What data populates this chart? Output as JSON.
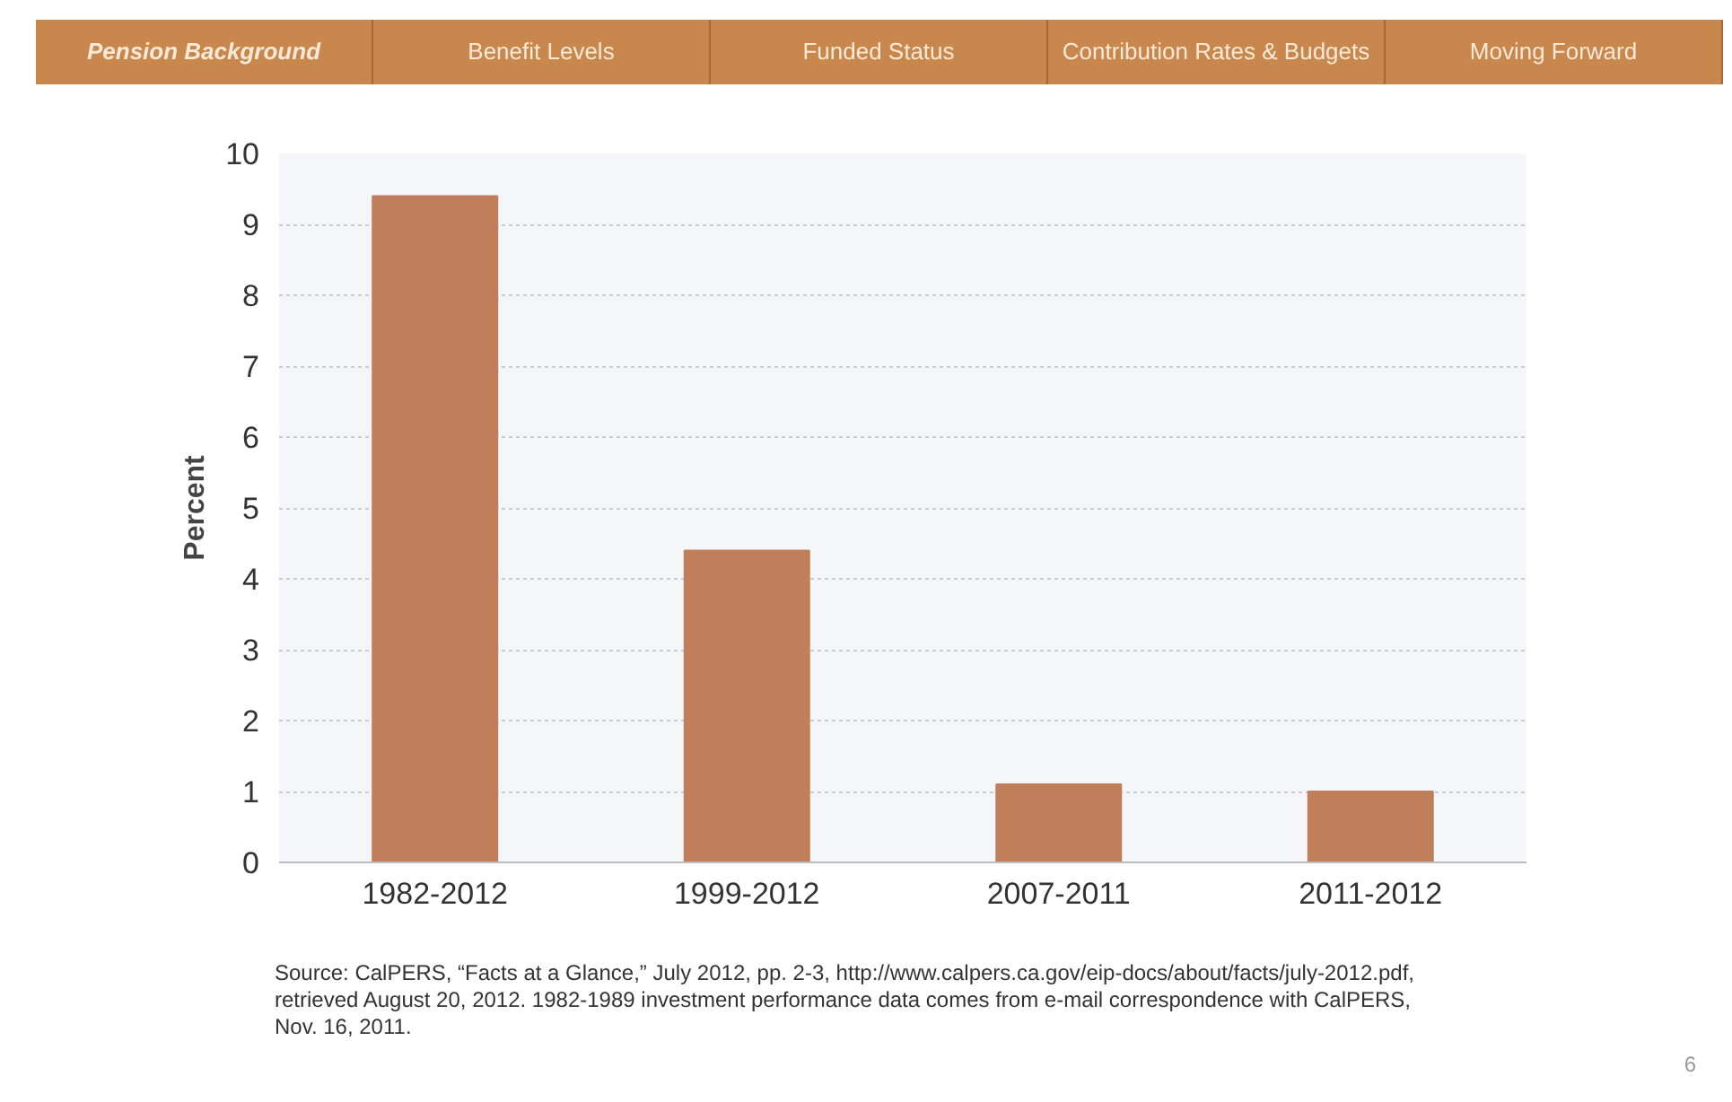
{
  "chart_data": {
    "type": "bar",
    "ylabel": "Percent",
    "categories": [
      "1982-2012",
      "1999-2012",
      "2007-2011",
      "2011-2012"
    ],
    "values": [
      9.4,
      4.4,
      1.1,
      1.0
    ],
    "color": "#c07f5a",
    "ylim": [
      0,
      10
    ],
    "yticks": [
      0,
      1,
      2,
      3,
      4,
      5,
      6,
      7,
      8,
      9,
      10
    ],
    "grid": "y",
    "annotations": [
      "Pension Background",
      "Benefit Levels",
      "Funded Status",
      "Contribution Rates & Budgets",
      "Moving Forward",
      "Source: CalPERS, “Facts at a Glance,” July 2012, pp. 2-3, http://www.calpers.ca.gov/eip-docs/about/facts/july-2012.pdf, retrieved August 20, 2012.  1982-1989 investment performance data comes from e-mail correspondence with CalPERS, Nov. 16, 2011.",
      "6"
    ]
  }
}
